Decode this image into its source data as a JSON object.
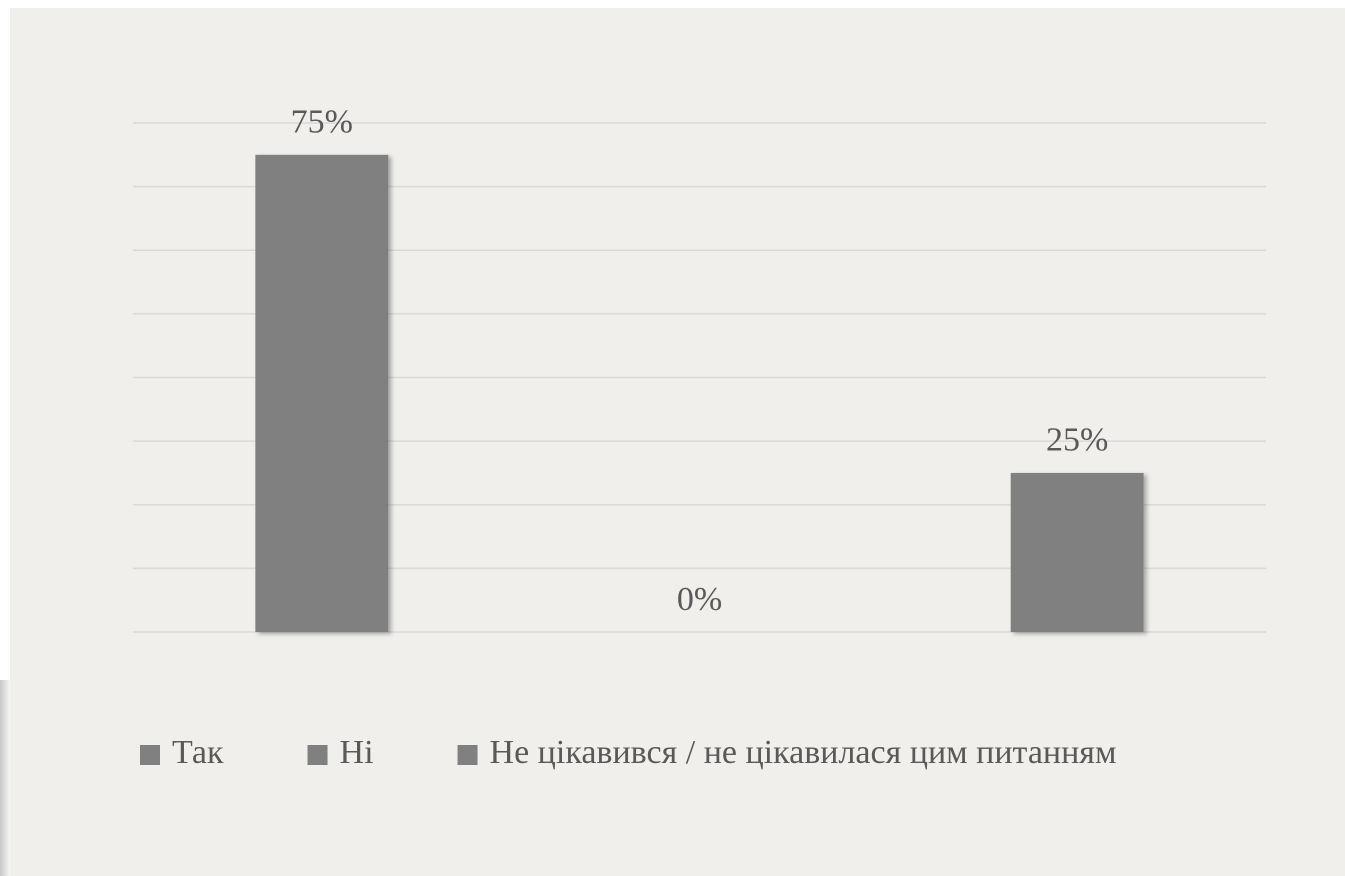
{
  "chart_data": {
    "type": "bar",
    "categories": [
      "Так",
      "Ні",
      "Не цікавився / не цікавилася цим питанням"
    ],
    "values": [
      75,
      0,
      25
    ],
    "value_labels": [
      "75%",
      "0%",
      "25%"
    ],
    "color": "#808080",
    "ylim": [
      0,
      80
    ],
    "yticks": [
      0,
      10,
      20,
      30,
      40,
      50,
      60,
      70,
      80
    ],
    "grid": true,
    "legend": "bottom"
  }
}
